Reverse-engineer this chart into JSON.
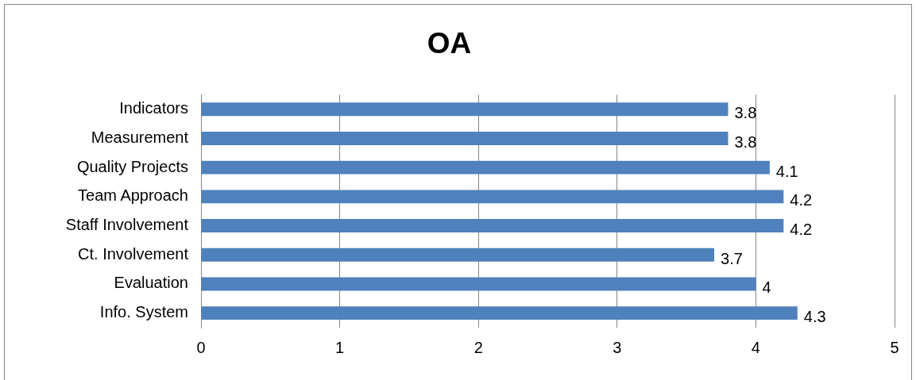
{
  "chart_data": {
    "type": "bar",
    "orientation": "horizontal",
    "title": "OA",
    "categories": [
      "Indicators",
      "Measurement",
      "Quality Projects",
      "Team Approach",
      "Staff Involvement",
      "Ct. Involvement",
      "Evaluation",
      "Info. System"
    ],
    "values": [
      3.8,
      3.8,
      4.1,
      4.2,
      4.2,
      3.7,
      4,
      4.3
    ],
    "color": "#4f81bd",
    "xlim": [
      0,
      5
    ],
    "xticks": [
      0,
      1,
      2,
      3,
      4,
      5
    ],
    "grid": "x",
    "legend": false,
    "data_labels": true
  }
}
